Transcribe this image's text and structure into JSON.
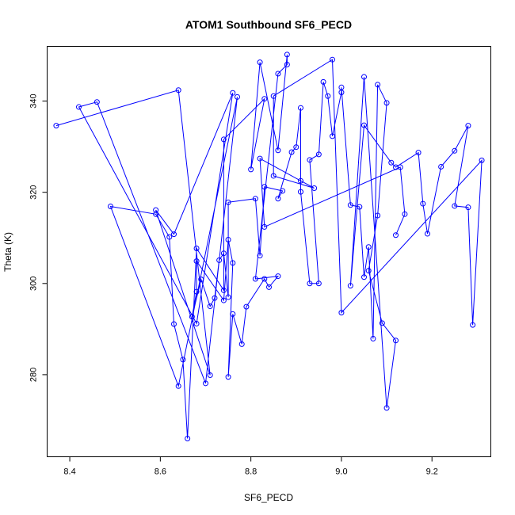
{
  "chart_data": {
    "type": "scatter",
    "title": "ATOM1 Southbound SF6_PECD",
    "xlabel": "SF6_PECD",
    "ylabel": "Theta (K)",
    "xlim": [
      8.35,
      9.33
    ],
    "ylim": [
      262,
      352
    ],
    "xticks": [
      "8.4",
      "8.6",
      "8.8",
      "9.0",
      "9.2"
    ],
    "yticks": [
      "280",
      "300",
      "320",
      "340"
    ],
    "grid": false,
    "connected": true,
    "colors": {
      "series": "#0000ff",
      "axis": "#000000"
    },
    "series": [
      {
        "values": [
          [
            8.37,
            334.6
          ],
          [
            8.64,
            342.4
          ],
          [
            8.71,
            279.9
          ],
          [
            8.59,
            316.1
          ],
          [
            8.63,
            310.8
          ],
          [
            8.76,
            341.8
          ],
          [
            8.68,
            291.2
          ],
          [
            8.42,
            338.7
          ],
          [
            8.46,
            339.8
          ],
          [
            8.7,
            278.1
          ],
          [
            8.77,
            340.9
          ],
          [
            8.64,
            277.5
          ],
          [
            8.49,
            316.9
          ],
          [
            8.59,
            315.2
          ],
          [
            8.62,
            310.2
          ],
          [
            8.63,
            291.1
          ],
          [
            8.65,
            283.3
          ],
          [
            8.66,
            266.0
          ],
          [
            8.68,
            307.7
          ],
          [
            8.74,
            298.5
          ],
          [
            8.74,
            331.6
          ],
          [
            8.83,
            340.5
          ],
          [
            8.8,
            325.0
          ],
          [
            8.82,
            348.5
          ],
          [
            8.86,
            329.2
          ],
          [
            8.88,
            350.2
          ],
          [
            8.88,
            348.0
          ],
          [
            8.86,
            346.0
          ],
          [
            8.81,
            301.0
          ],
          [
            8.86,
            301.6
          ],
          [
            8.84,
            299.2
          ],
          [
            8.83,
            301.0
          ],
          [
            8.79,
            294.9
          ],
          [
            8.78,
            286.7
          ],
          [
            8.76,
            293.3
          ],
          [
            8.75,
            279.5
          ],
          [
            8.76,
            304.5
          ],
          [
            8.75,
            309.6
          ],
          [
            8.74,
            296.3
          ],
          [
            8.68,
            304.9
          ],
          [
            8.68,
            298.2
          ],
          [
            8.67,
            292.7
          ],
          [
            8.69,
            300.9
          ],
          [
            8.71,
            295.0
          ],
          [
            8.72,
            296.8
          ],
          [
            8.73,
            305.1
          ],
          [
            8.74,
            306.6
          ],
          [
            8.75,
            297.0
          ],
          [
            8.75,
            317.8
          ],
          [
            8.81,
            318.6
          ],
          [
            8.82,
            306.1
          ],
          [
            8.83,
            321.2
          ],
          [
            8.87,
            320.3
          ],
          [
            8.86,
            318.6
          ],
          [
            8.89,
            328.8
          ],
          [
            8.9,
            329.9
          ],
          [
            8.91,
            338.5
          ],
          [
            8.91,
            322.5
          ],
          [
            8.91,
            320.1
          ],
          [
            8.93,
            300.0
          ],
          [
            8.95,
            300.0
          ],
          [
            8.93,
            327.1
          ],
          [
            8.95,
            328.3
          ],
          [
            8.96,
            344.2
          ],
          [
            8.97,
            341.1
          ],
          [
            8.98,
            332.3
          ],
          [
            9.0,
            341.9
          ],
          [
            9.0,
            343.0
          ],
          [
            9.02,
            317.2
          ],
          [
            9.04,
            316.8
          ],
          [
            9.05,
            301.4
          ],
          [
            9.06,
            308.0
          ],
          [
            9.07,
            287.9
          ],
          [
            9.08,
            343.6
          ],
          [
            9.1,
            339.6
          ],
          [
            9.08,
            314.9
          ],
          [
            9.06,
            302.8
          ],
          [
            9.09,
            291.3
          ],
          [
            9.12,
            287.5
          ],
          [
            9.1,
            272.7
          ],
          [
            9.05,
            345.3
          ],
          [
            9.02,
            299.5
          ],
          [
            9.05,
            334.7
          ],
          [
            9.11,
            326.5
          ],
          [
            9.12,
            325.5
          ],
          [
            9.17,
            328.7
          ],
          [
            9.18,
            317.5
          ],
          [
            9.19,
            310.9
          ],
          [
            9.22,
            325.6
          ],
          [
            9.25,
            329.1
          ],
          [
            9.28,
            334.6
          ],
          [
            9.25,
            317.0
          ],
          [
            9.28,
            316.7
          ],
          [
            9.29,
            290.9
          ],
          [
            9.31,
            327.0
          ],
          [
            9.0,
            293.6
          ],
          [
            8.98,
            349.1
          ],
          [
            8.85,
            341.1
          ],
          [
            8.85,
            323.6
          ],
          [
            8.94,
            320.9
          ],
          [
            8.82,
            327.4
          ],
          [
            8.83,
            312.4
          ],
          [
            9.13,
            325.5
          ],
          [
            9.14,
            315.2
          ],
          [
            9.12,
            310.6
          ]
        ]
      }
    ]
  }
}
